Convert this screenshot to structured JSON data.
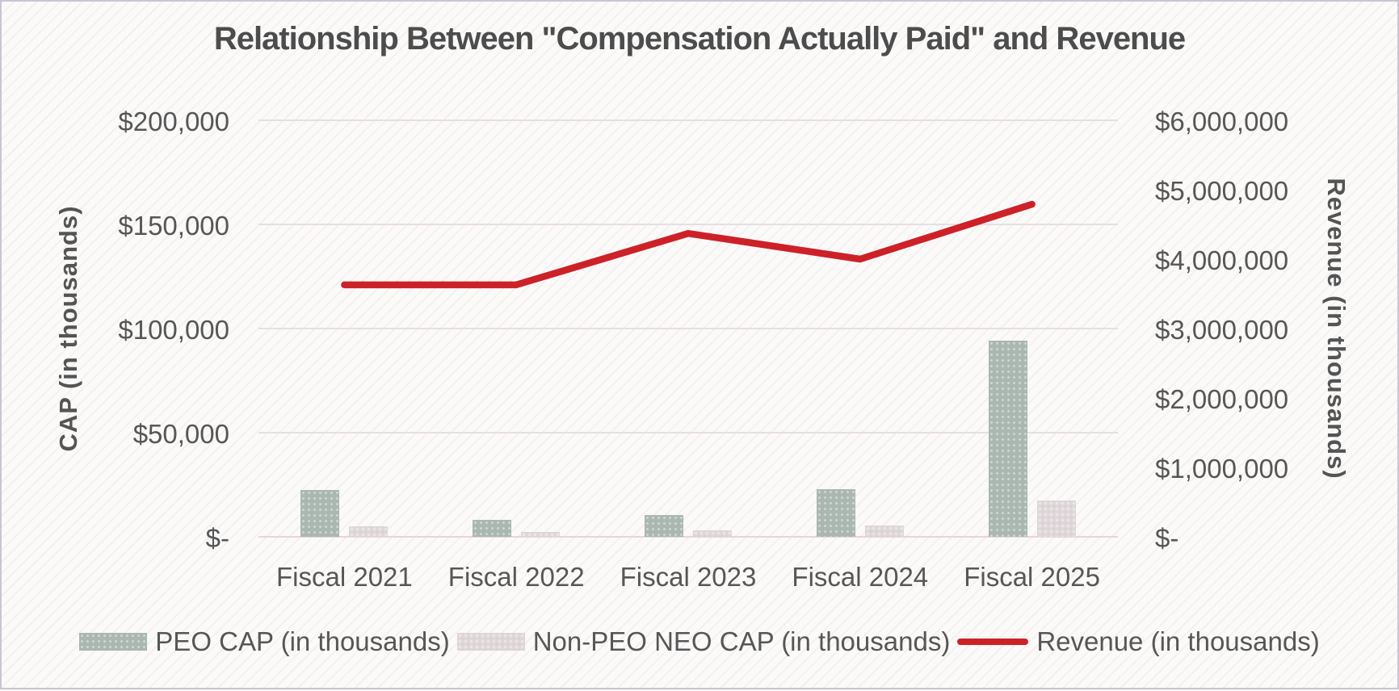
{
  "chart_data": {
    "type": "combo-bar-line",
    "title": "Relationship Between \"Compensation Actually Paid\" and Revenue",
    "categories": [
      "Fiscal 2021",
      "Fiscal 2022",
      "Fiscal 2023",
      "Fiscal 2024",
      "Fiscal 2025"
    ],
    "bar_series": [
      {
        "name": "PEO CAP (in thousands)",
        "color": "#a9b8b2",
        "axis": "left",
        "values": [
          22500,
          8300,
          10500,
          23000,
          94000
        ]
      },
      {
        "name": "Non-PEO NEO CAP (in thousands)",
        "color": "#ded8db",
        "axis": "left",
        "values": [
          5000,
          2400,
          3100,
          5300,
          17400
        ]
      }
    ],
    "line_series": {
      "name": "Revenue (in thousands)",
      "color": "#cd2128",
      "axis": "right",
      "values": [
        3630000,
        3630000,
        4370000,
        4000000,
        4790000
      ]
    },
    "left_axis": {
      "title": "CAP (in thousands)",
      "min": 0,
      "max": 200000,
      "ticks": [
        {
          "value": 200000,
          "label": "$200,000"
        },
        {
          "value": 150000,
          "label": "$150,000"
        },
        {
          "value": 100000,
          "label": "$100,000"
        },
        {
          "value": 50000,
          "label": "$50,000"
        },
        {
          "value": 0,
          "label": "$-"
        }
      ]
    },
    "right_axis": {
      "title": "Revenue (in thousands)",
      "min": 0,
      "max": 6000000,
      "ticks": [
        {
          "value": 6000000,
          "label": "$6,000,000"
        },
        {
          "value": 5000000,
          "label": "$5,000,000"
        },
        {
          "value": 4000000,
          "label": "$4,000,000"
        },
        {
          "value": 3000000,
          "label": "$3,000,000"
        },
        {
          "value": 2000000,
          "label": "$2,000,000"
        },
        {
          "value": 1000000,
          "label": "$1,000,000"
        },
        {
          "value": 0,
          "label": "$-"
        }
      ]
    },
    "legend_position": "bottom",
    "grid": "horizontal"
  }
}
